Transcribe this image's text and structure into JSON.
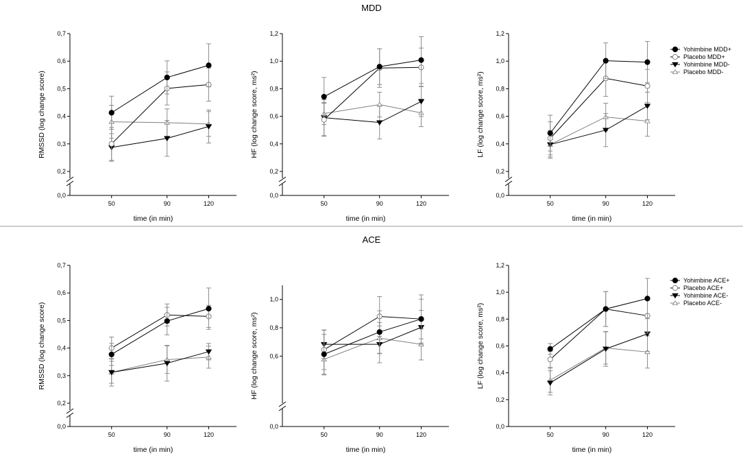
{
  "chart_data": {
    "sections": [
      {
        "title": "MDD",
        "legend": [
          "Yohimbine MDD+",
          "Placebo MDD+",
          "Yohimbine MDD-",
          "Placebo MDD-"
        ],
        "panels": [
          {
            "type": "line",
            "ylabel": "RMSSD (log change score)",
            "xlabel": "time (in min)",
            "x": [
              50,
              90,
              120
            ],
            "xlim": [
              20,
              140
            ],
            "ylim": [
              0.2,
              0.7
            ],
            "yticks": [
              "0,2",
              "0,3",
              "0,4",
              "0,5",
              "0,6",
              "0,7"
            ],
            "ybottom": "0,0",
            "series": [
              {
                "name": "Yohimbine MDD+",
                "values": [
                  0.413,
                  0.541,
                  0.585
                ],
                "err": [
                  0.06,
                  0.06,
                  0.078
                ]
              },
              {
                "name": "Placebo MDD+",
                "values": [
                  0.3,
                  0.501,
                  0.515
                ],
                "err": [
                  0.06,
                  0.06,
                  0.06
                ]
              },
              {
                "name": "Yohimbine MDD-",
                "values": [
                  0.287,
                  0.32,
                  0.363
                ],
                "err": [
                  0.05,
                  0.065,
                  0.06
                ]
              },
              {
                "name": "Placebo MDD-",
                "values": [
                  0.38,
                  0.377,
                  0.372
                ],
                "err": [
                  0.06,
                  0.05,
                  0.045
                ]
              }
            ]
          },
          {
            "type": "line",
            "ylabel": "HF (log change score, ms²)",
            "xlabel": "time (in min)",
            "x": [
              50,
              90,
              120
            ],
            "xlim": [
              20,
              140
            ],
            "ylim": [
              0.2,
              1.2
            ],
            "yticks": [
              "0,2",
              "0,4",
              "0,6",
              "0,8",
              "1,0",
              "1,2"
            ],
            "ybottom": "0,0",
            "series": [
              {
                "name": "Yohimbine MDD+",
                "values": [
                  0.742,
                  0.96,
                  1.008
                ],
                "err": [
                  0.14,
                  0.13,
                  0.17
                ]
              },
              {
                "name": "Placebo MDD+",
                "values": [
                  0.575,
                  0.95,
                  0.955
                ],
                "err": [
                  0.12,
                  0.14,
                  0.14
                ]
              },
              {
                "name": "Yohimbine MDD-",
                "values": [
                  0.59,
                  0.555,
                  0.708
                ],
                "err": [
                  0.13,
                  0.12,
                  0.11
                ]
              },
              {
                "name": "Placebo MDD-",
                "values": [
                  0.62,
                  0.685,
                  0.625
                ],
                "err": [
                  0.08,
                  0.09,
                  0.1
                ]
              }
            ]
          },
          {
            "type": "line",
            "ylabel": "LF (log change score, ms²)",
            "xlabel": "time (in min)",
            "x": [
              50,
              90,
              120
            ],
            "xlim": [
              20,
              140
            ],
            "ylim": [
              0.2,
              1.2
            ],
            "yticks": [
              "0,2",
              "0,4",
              "0,6",
              "0,8",
              "1,0",
              "1,2"
            ],
            "ybottom": "0,0",
            "series": [
              {
                "name": "Yohimbine MDD+",
                "values": [
                  0.478,
                  1.003,
                  0.993
                ],
                "err": [
                  0.13,
                  0.13,
                  0.15
                ]
              },
              {
                "name": "Placebo MDD+",
                "values": [
                  0.44,
                  0.875,
                  0.82
                ],
                "err": [
                  0.12,
                  0.13,
                  0.12
                ]
              },
              {
                "name": "Yohimbine MDD-",
                "values": [
                  0.395,
                  0.5,
                  0.675
                ],
                "err": [
                  0.1,
                  0.12,
                  0.1
                ]
              },
              {
                "name": "Placebo MDD-",
                "values": [
                  0.395,
                  0.595,
                  0.565
                ],
                "err": [
                  0.09,
                  0.1,
                  0.11
                ]
              }
            ]
          }
        ]
      },
      {
        "title": "ACE",
        "legend": [
          "Yohimbine ACE+",
          "Placebo ACE+",
          "Yohimbine ACE-",
          "Placebo ACE-"
        ],
        "panels": [
          {
            "type": "line",
            "ylabel": "RMSSD (log change score)",
            "xlabel": "time (in min)",
            "x": [
              50,
              90,
              120
            ],
            "xlim": [
              20,
              140
            ],
            "ylim": [
              0.2,
              0.7
            ],
            "yticks": [
              "0,2",
              "0,3",
              "0,4",
              "0,5",
              "0,6",
              "0,7"
            ],
            "ybottom": "0,0",
            "series": [
              {
                "name": "Yohimbine ACE+",
                "values": [
                  0.377,
                  0.498,
                  0.543
                ],
                "err": [
                  0.04,
                  0.05,
                  0.075
                ]
              },
              {
                "name": "Placebo ACE+",
                "values": [
                  0.4,
                  0.52,
                  0.515
                ],
                "err": [
                  0.04,
                  0.04,
                  0.04
                ]
              },
              {
                "name": "Yohimbine ACE-",
                "values": [
                  0.312,
                  0.345,
                  0.387
                ],
                "err": [
                  0.05,
                  0.065,
                  0.03
                ]
              },
              {
                "name": "Placebo ACE-",
                "values": [
                  0.312,
                  0.358,
                  0.367
                ],
                "err": [
                  0.04,
                  0.05,
                  0.04
                ]
              }
            ]
          },
          {
            "type": "line",
            "ylabel": "HF (log change score, ms²)",
            "xlabel": "time (in min)",
            "x": [
              50,
              90,
              120
            ],
            "xlim": [
              20,
              140
            ],
            "ylim": [
              0.5,
              1.1
            ],
            "yticks": [
              "0,6",
              "0,8",
              "1,0"
            ],
            "ybottom": "0,0",
            "series": [
              {
                "name": "Yohimbine ACE+",
                "values": [
                  0.613,
                  0.77,
                  0.862
                ],
                "err": [
                  0.14,
                  0.15,
                  0.14
                ]
              },
              {
                "name": "Placebo ACE+",
                "values": [
                  0.645,
                  0.88,
                  0.862
                ],
                "err": [
                  0.14,
                  0.14,
                  0.17
                ]
              },
              {
                "name": "Yohimbine ACE-",
                "values": [
                  0.683,
                  0.683,
                  0.803
                ],
                "err": [
                  0.1,
                  0.13,
                  0.12
                ]
              },
              {
                "name": "Placebo ACE-",
                "values": [
                  0.577,
                  0.727,
                  0.683
                ],
                "err": [
                  0.11,
                  0.11,
                  0.11
                ]
              }
            ]
          },
          {
            "type": "line",
            "ylabel": "LF (log change score, ms²)",
            "xlabel": "time (in min)",
            "x": [
              50,
              90,
              120
            ],
            "xlim": [
              20,
              140
            ],
            "ylim": [
              0.0,
              1.2
            ],
            "yticks": [
              "0,0",
              "0,2",
              "0,4",
              "0,6",
              "0,8",
              "1,0",
              "1,2"
            ],
            "ybottom": "",
            "series": [
              {
                "name": "Yohimbine ACE+",
                "values": [
                  0.578,
                  0.875,
                  0.953
                ],
                "err": [
                  0.04,
                  0.13,
                  0.15
                ]
              },
              {
                "name": "Placebo ACE+",
                "values": [
                  0.5,
                  0.875,
                  0.825
                ],
                "err": [
                  0.06,
                  0.13,
                  0.13
                ]
              },
              {
                "name": "Yohimbine ACE-",
                "values": [
                  0.325,
                  0.578,
                  0.69
                ],
                "err": [
                  0.09,
                  0.13,
                  0.13
                ]
              },
              {
                "name": "Placebo ACE-",
                "values": [
                  0.345,
                  0.585,
                  0.555
                ],
                "err": [
                  0.09,
                  0.12,
                  0.12
                ]
              }
            ]
          }
        ]
      }
    ],
    "marker_styles": {
      "Yohimbine": {
        "shape": "circle",
        "fill": "#000000",
        "stroke": "#000000"
      },
      "Placebo": {
        "shape": "circle",
        "fill": "#ffffff",
        "stroke": "#7f7f7f"
      },
      "Yohimbine-": {
        "shape": "triangle-down",
        "fill": "#000000",
        "stroke": "#000000"
      },
      "Placebo-": {
        "shape": "triangle-up",
        "fill": "#ffffff",
        "stroke": "#7f7f7f"
      }
    },
    "colors": {
      "dark": "#000000",
      "grey": "#7f7f7f",
      "error_bar": "#8c8c8c",
      "divider": "#9a9a9a"
    }
  }
}
